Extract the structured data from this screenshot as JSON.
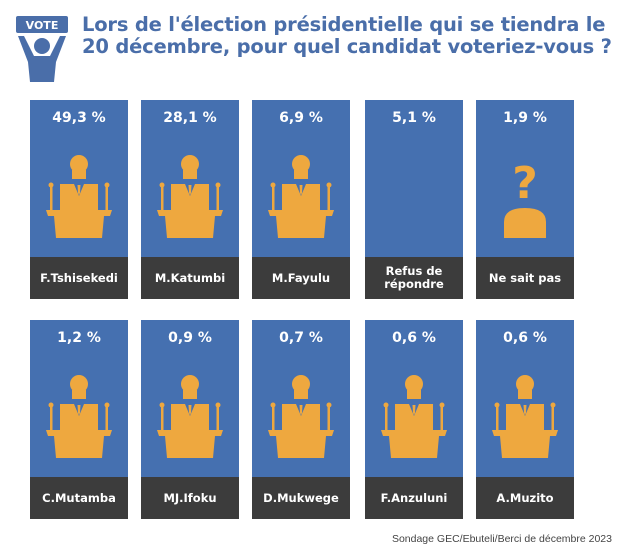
{
  "header": {
    "logo_text": "VOTE",
    "title": "Lors de l'élection présidentielle qui se tiendra le 20 décembre, pour quel candidat voteriez-vous ?"
  },
  "colors": {
    "card_blue": "#4570b0",
    "label_dark": "#3c3c3c",
    "icon_orange": "#eea83f",
    "title_blue": "#4a6ea9"
  },
  "chart_data": {
    "type": "table",
    "title": "Lors de l'élection présidentielle qui se tiendra le 20 décembre, pour quel candidat voteriez-vous ?",
    "categories": [
      "F.Tshisekedi",
      "M.Katumbi",
      "M.Fayulu",
      "Refus de répondre",
      "Ne sait pas",
      "C.Mutamba",
      "MJ.Ifoku",
      "D.Mukwege",
      "F.Anzuluni",
      "A.Muzito"
    ],
    "values": [
      49.3,
      28.1,
      6.9,
      5.1,
      1.9,
      1.2,
      0.9,
      0.7,
      0.6,
      0.6
    ],
    "cards": [
      {
        "label": "F.Tshisekedi",
        "value_text": "49,3 %",
        "icon": "podium-speaker-icon"
      },
      {
        "label": "M.Katumbi",
        "value_text": "28,1 %",
        "icon": "podium-speaker-icon"
      },
      {
        "label": "M.Fayulu",
        "value_text": "6,9 %",
        "icon": "podium-speaker-icon"
      },
      {
        "label": "Refus de répondre",
        "value_text": "5,1 %",
        "icon": ""
      },
      {
        "label": "Ne sait pas",
        "value_text": "1,9 %",
        "icon": "question-person-icon"
      },
      {
        "label": "C.Mutamba",
        "value_text": "1,2 %",
        "icon": "podium-speaker-icon"
      },
      {
        "label": "MJ.Ifoku",
        "value_text": "0,9 %",
        "icon": "podium-speaker-icon"
      },
      {
        "label": "D.Mukwege",
        "value_text": "0,7 %",
        "icon": "podium-speaker-icon"
      },
      {
        "label": "F.Anzuluni",
        "value_text": "0,6 %",
        "icon": "podium-speaker-icon"
      },
      {
        "label": "A.Muzito",
        "value_text": "0,6 %",
        "icon": "podium-speaker-icon"
      }
    ]
  },
  "footer": {
    "source": "Sondage GEC/Ebuteli/Berci de décembre 2023"
  }
}
